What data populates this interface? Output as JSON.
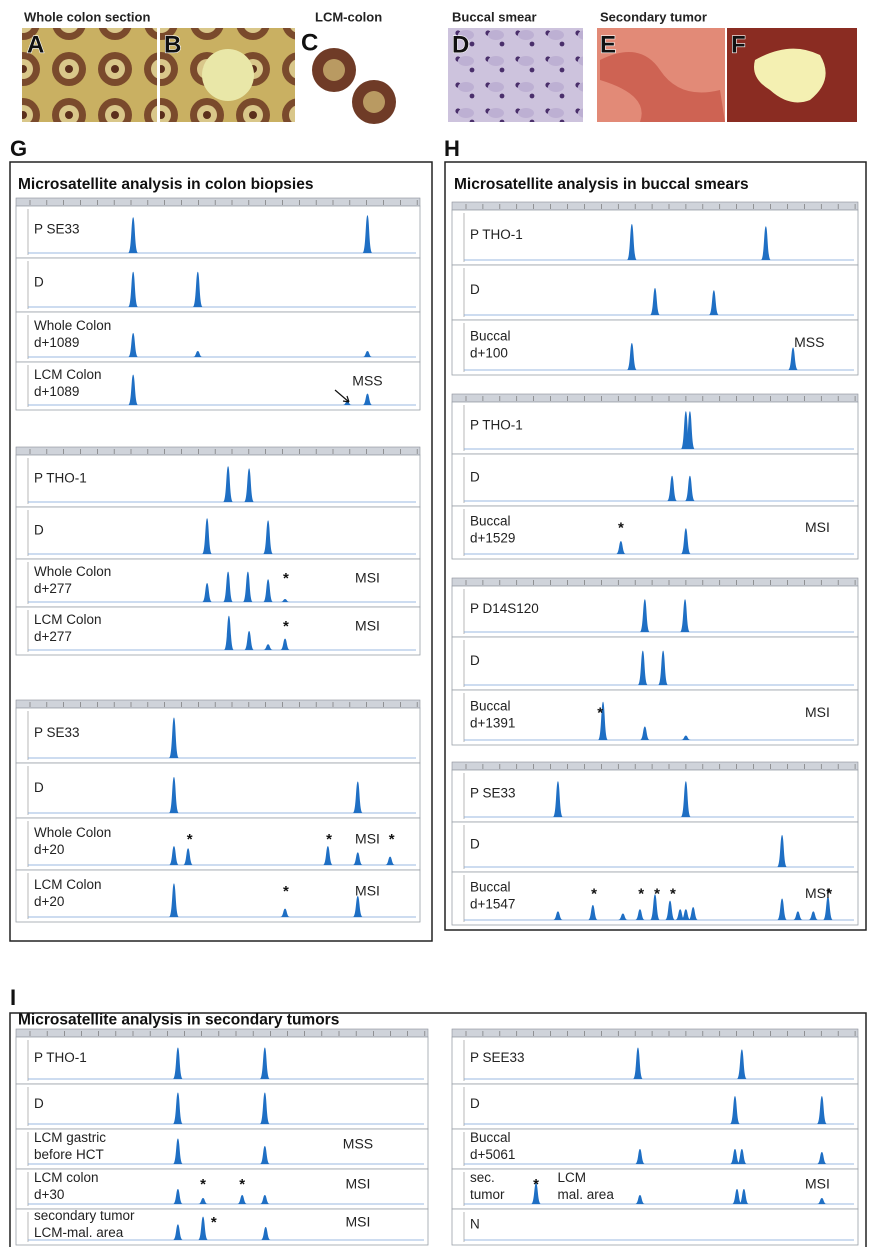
{
  "top_panels": [
    {
      "heading": "Whole colon section",
      "letters": [
        "A",
        "B"
      ]
    },
    {
      "heading": "LCM-colon",
      "letters": [
        "C"
      ]
    },
    {
      "heading": "Buccal smear",
      "letters": [
        "D"
      ]
    },
    {
      "heading": "Secondary tumor",
      "letters": [
        "E",
        "F"
      ]
    }
  ],
  "G": {
    "letter": "G",
    "title": "Microsatellite analysis in colon biopsies",
    "groups": [
      {
        "rows": [
          {
            "label": [
              "P   SE33"
            ]
          },
          {
            "label": [
              "D"
            ]
          },
          {
            "label": [
              "Whole Colon",
              "d+1089"
            ]
          },
          {
            "label": [
              "LCM Colon",
              "d+1089"
            ],
            "call": "MSS"
          }
        ]
      },
      {
        "rows": [
          {
            "label": [
              "P   THO-1"
            ]
          },
          {
            "label": [
              "D"
            ]
          },
          {
            "label": [
              "Whole Colon",
              "d+277"
            ],
            "call": "MSI",
            "stars": [
              "*"
            ]
          },
          {
            "label": [
              "LCM Colon",
              "d+277"
            ],
            "call": "MSI",
            "stars": [
              "*"
            ]
          }
        ]
      },
      {
        "rows": [
          {
            "label": [
              "P   SE33"
            ]
          },
          {
            "label": [
              "D"
            ]
          },
          {
            "label": [
              "Whole Colon",
              "d+20"
            ],
            "call": "MSI",
            "stars": [
              "*",
              "*",
              "*"
            ]
          },
          {
            "label": [
              "LCM Colon",
              "d+20"
            ],
            "call": "MSI",
            "stars": [
              "*"
            ]
          }
        ]
      }
    ]
  },
  "H": {
    "letter": "H",
    "title": "Microsatellite analysis in buccal smears",
    "groups": [
      {
        "rows": [
          {
            "label": [
              "P THO-1"
            ]
          },
          {
            "label": [
              "D"
            ]
          },
          {
            "label": [
              "Buccal",
              "d+100"
            ],
            "call": "MSS"
          }
        ]
      },
      {
        "rows": [
          {
            "label": [
              "P THO-1"
            ]
          },
          {
            "label": [
              "D"
            ]
          },
          {
            "label": [
              "Buccal",
              "d+1529"
            ],
            "call": "MSI",
            "stars": [
              "*"
            ]
          }
        ]
      },
      {
        "rows": [
          {
            "label": [
              "P D14S120"
            ]
          },
          {
            "label": [
              "D"
            ]
          },
          {
            "label": [
              "Buccal",
              "d+1391"
            ],
            "call": "MSI",
            "stars": [
              "*"
            ]
          }
        ]
      },
      {
        "rows": [
          {
            "label": [
              "P   SE33"
            ]
          },
          {
            "label": [
              "D"
            ]
          },
          {
            "label": [
              "Buccal",
              "d+1547"
            ],
            "call": "MSI",
            "stars": [
              "*",
              "*",
              "*",
              "*",
              "*"
            ]
          }
        ]
      }
    ]
  },
  "I": {
    "letter": "I",
    "title": "Microsatellite analysis in secondary tumors",
    "groups": [
      {
        "rows": [
          {
            "label": [
              "P    THO-1"
            ]
          },
          {
            "label": [
              "D"
            ]
          },
          {
            "label": [
              "LCM gastric",
              "before HCT"
            ],
            "call": "MSS"
          },
          {
            "label": [
              "LCM colon",
              "d+30"
            ],
            "call": "MSI",
            "stars": [
              "*",
              "*"
            ]
          },
          {
            "label": [
              "secondary tumor",
              "LCM-mal. area"
            ],
            "call": "MSI",
            "stars": [
              "*"
            ]
          }
        ]
      },
      {
        "rows": [
          {
            "label": [
              "P  SEE33"
            ]
          },
          {
            "label": [
              "D"
            ]
          },
          {
            "label": [
              "Buccal",
              "d+5061"
            ]
          },
          {
            "label": [
              "sec.",
              "tumor"
            ],
            "note": [
              "LCM",
              "mal. area"
            ],
            "call": "MSI",
            "stars": [
              "*"
            ]
          },
          {
            "label": [
              "N"
            ]
          }
        ]
      }
    ]
  }
}
